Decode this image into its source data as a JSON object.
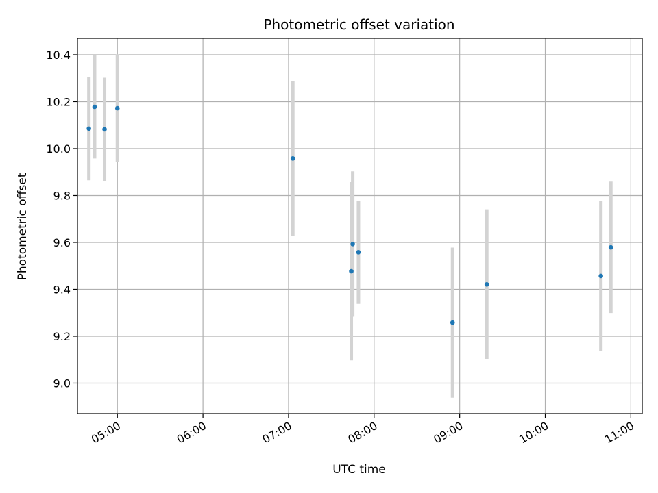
{
  "chart_data": {
    "type": "scatter",
    "title": "Photometric offset variation",
    "xlabel": "UTC time",
    "ylabel": "Photometric offset",
    "x_ticks": [
      "05:00",
      "06:00",
      "07:00",
      "08:00",
      "09:00",
      "10:00",
      "11:00"
    ],
    "y_ticks": [
      "9.0",
      "9.2",
      "9.4",
      "9.6",
      "9.8",
      "10.0",
      "10.2",
      "10.4"
    ],
    "xlim": [
      "04:32",
      "11:08"
    ],
    "ylim": [
      8.87,
      10.47
    ],
    "grid": true,
    "colors": {
      "point": "#1f77b4",
      "errorbar": "#d3d3d3",
      "grid": "#b0b0b0"
    },
    "points": [
      {
        "x": "04:40",
        "y": 10.085,
        "yerr": 0.22
      },
      {
        "x": "04:44",
        "y": 10.178,
        "yerr": 0.22
      },
      {
        "x": "04:51",
        "y": 10.082,
        "yerr": 0.22
      },
      {
        "x": "05:00",
        "y": 10.172,
        "yerr": 0.23
      },
      {
        "x": "07:03",
        "y": 9.958,
        "yerr": 0.33
      },
      {
        "x": "07:44",
        "y": 9.477,
        "yerr": 0.38
      },
      {
        "x": "07:45",
        "y": 9.593,
        "yerr": 0.31
      },
      {
        "x": "07:49",
        "y": 9.558,
        "yerr": 0.22
      },
      {
        "x": "08:55",
        "y": 9.258,
        "yerr": 0.32
      },
      {
        "x": "09:19",
        "y": 9.421,
        "yerr": 0.32
      },
      {
        "x": "10:39",
        "y": 9.457,
        "yerr": 0.32
      },
      {
        "x": "10:46",
        "y": 9.579,
        "yerr": 0.28
      }
    ]
  }
}
